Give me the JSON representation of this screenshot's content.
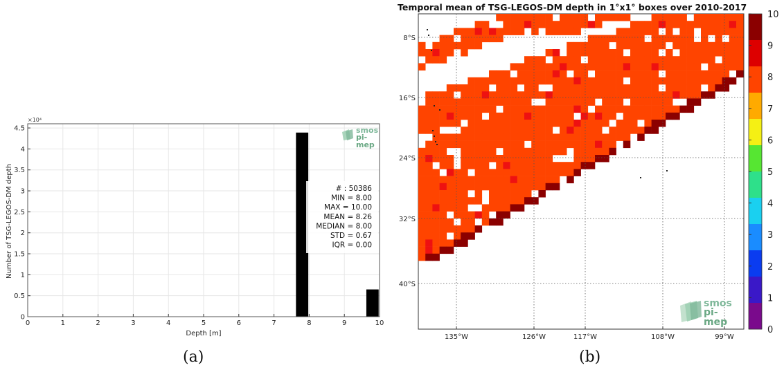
{
  "panel_a": {
    "caption": "(a)",
    "logo": {
      "line1": "smos",
      "line2": "pi-mep",
      "color": "#7fb89a"
    },
    "stats": [
      {
        "label": "#",
        "value": "50386"
      },
      {
        "label": "MIN",
        "value": "8.00"
      },
      {
        "label": "MAX",
        "value": "10.00"
      },
      {
        "label": "MEAN",
        "value": "8.26"
      },
      {
        "label": "MEDIAN",
        "value": "8.00"
      },
      {
        "label": "STD",
        "value": "0.67"
      },
      {
        "label": "IQR",
        "value": "0.00"
      }
    ],
    "stats_lines": [
      "# : 50386",
      "MIN = 8.00",
      "MAX =  10.00",
      "MEAN = 8.26",
      "MEDIAN = 8.00",
      "STD = 0.67",
      "IQR = 0.00"
    ]
  },
  "panel_b": {
    "caption": "(b)",
    "title": "Temporal mean of TSG-LEGOS-DM depth in 1°x1° boxes over 2010-2017",
    "logo": {
      "line1": "smos",
      "line2": "pi-mep",
      "color": "#7fb89a"
    },
    "lat_labels": [
      "8°S",
      "16°S",
      "24°S",
      "32°S",
      "40°S"
    ],
    "lon_labels": [
      "135°W",
      "126°W",
      "117°W",
      "108°W",
      "99°W"
    ],
    "colorbar": {
      "ticks": [
        "0",
        "1",
        "2",
        "3",
        "4",
        "5",
        "6",
        "7",
        "8",
        "9",
        "10"
      ],
      "colors": [
        "#7a0a8c",
        "#3a18c8",
        "#0a3cf0",
        "#1a8cff",
        "#1ad0f0",
        "#2ee08a",
        "#56e632",
        "#f5f014",
        "#ffaa00",
        "#ff4400",
        "#dd0000",
        "#8b0000"
      ]
    },
    "cell_colors": {
      "depth_8": "#ff4400",
      "depth_9": "#ee1111",
      "depth_10": "#8b0000"
    }
  },
  "chart_data": [
    {
      "type": "bar",
      "xlabel": "Depth [m]",
      "ylabel": "Number of TSG-LEGOS-DM depth",
      "y_multiplier": "×10⁴",
      "x_ticks": [
        "0",
        "1",
        "2",
        "3",
        "4",
        "5",
        "6",
        "7",
        "8",
        "9",
        "10"
      ],
      "y_ticks": [
        "0",
        "0.5",
        "1",
        "1.5",
        "2",
        "2.5",
        "3",
        "3.5",
        "4",
        "4.5"
      ],
      "xlim": [
        0,
        10
      ],
      "ylim": [
        0,
        4.6
      ],
      "grid": true,
      "bars": [
        {
          "x": 7.8,
          "value": 4.39
        },
        {
          "x": 9.8,
          "value": 0.65
        }
      ],
      "bar_width": 0.35,
      "bar_color": "#000000"
    },
    {
      "type": "heatmap",
      "title": "Temporal mean of TSG-LEGOS-DM depth in 1°x1° boxes over 2010-2017",
      "colorbar_range": [
        0,
        10
      ],
      "lat_ticks": [
        "8°S",
        "16°S",
        "24°S",
        "32°S",
        "40°S"
      ],
      "lon_ticks": [
        "135°W",
        "126°W",
        "117°W",
        "108°W",
        "99°W"
      ],
      "grid": true,
      "dominant_value": 8,
      "values_present": [
        8,
        9,
        10
      ]
    }
  ]
}
